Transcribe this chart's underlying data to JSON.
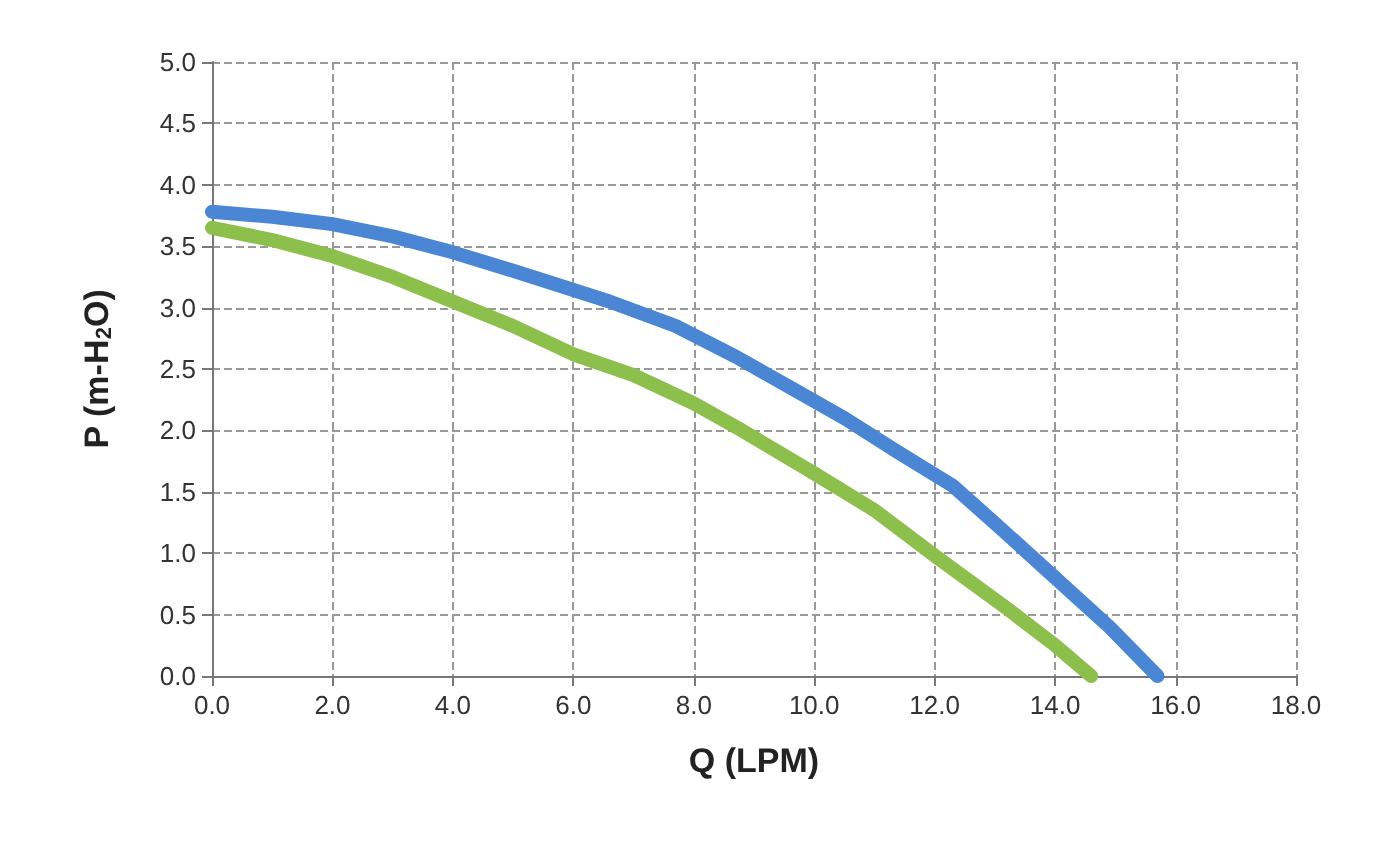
{
  "chart_data": {
    "type": "line",
    "xlabel": "Q (LPM)",
    "ylabel": "P (m-H$_{2}$O)",
    "xlim": [
      0,
      18
    ],
    "xticks": [
      {
        "value": 0,
        "label": "0.0"
      },
      {
        "value": 2,
        "label": "2.0"
      },
      {
        "value": 4,
        "label": "4.0"
      },
      {
        "value": 6,
        "label": "6.0"
      },
      {
        "value": 8,
        "label": "8.0"
      },
      {
        "value": 10,
        "label": "10.0"
      },
      {
        "value": 12,
        "label": "12.0"
      },
      {
        "value": 14,
        "label": "14.0"
      },
      {
        "value": 16,
        "label": "16.0"
      },
      {
        "value": 18,
        "label": "18.0"
      }
    ],
    "ylim": [
      0,
      5
    ],
    "yticks": [
      {
        "value": 0,
        "label": "0.0"
      },
      {
        "value": 0.5,
        "label": "0.5"
      },
      {
        "value": 1,
        "label": "1.0"
      },
      {
        "value": 1.5,
        "label": "1.5"
      },
      {
        "value": 2,
        "label": "2.0"
      },
      {
        "value": 2.5,
        "label": "2.5"
      },
      {
        "value": 3,
        "label": "3.0"
      },
      {
        "value": 3.5,
        "label": "3.5"
      },
      {
        "value": 4,
        "label": "4.0"
      },
      {
        "value": 4.5,
        "label": "4.5"
      },
      {
        "value": 5,
        "label": "5.0"
      }
    ],
    "grid": true,
    "legend": false,
    "line_style": "solid",
    "series": [
      {
        "color": "#4a86d4",
        "x": [
          0,
          1,
          2,
          3,
          4,
          5,
          6.6,
          7.7,
          8.7,
          9.6,
          10.5,
          11.4,
          12.3,
          13.1,
          14,
          14.9,
          15.7
        ],
        "values": [
          3.78,
          3.74,
          3.68,
          3.58,
          3.45,
          3.3,
          3.05,
          2.85,
          2.6,
          2.35,
          2.1,
          1.82,
          1.55,
          1.2,
          0.8,
          0.4,
          0
        ]
      },
      {
        "color": "#8cbf4b",
        "x": [
          0,
          1,
          2,
          3,
          4,
          5,
          6,
          7,
          8,
          8.8,
          10,
          11,
          12,
          13.2,
          14,
          14.6
        ],
        "values": [
          3.65,
          3.55,
          3.42,
          3.25,
          3.05,
          2.85,
          2.62,
          2.45,
          2.22,
          2,
          1.65,
          1.35,
          0.98,
          0.55,
          0.25,
          0
        ]
      }
    ]
  }
}
